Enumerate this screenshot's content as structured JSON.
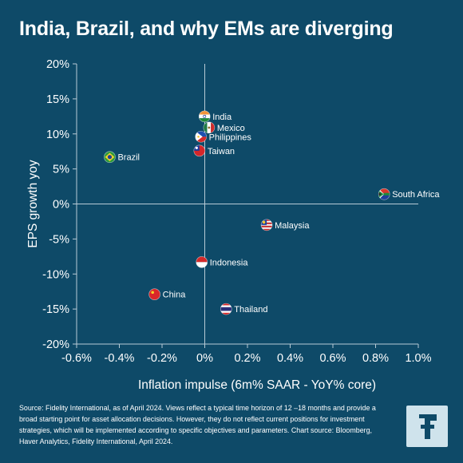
{
  "title": "India, Brazil, and why EMs are diverging",
  "footer": {
    "source": "Source: Fidelity International, as of April 2024. Views reflect a typical time horizon of 12 –18 months and provide a broad starting point for asset allocation decisions. However, they do not reflect current positions for investment strategies, which will be implemented according to specific objectives and parameters. Chart source: Bloomberg, Haver Analytics, Fidelity International, April 2024."
  },
  "logo": {
    "icon": "fidelity-f-logo"
  },
  "chart_data": {
    "type": "scatter",
    "title": "India, Brazil, and why EMs are diverging",
    "xlabel": "Inflation impulse (6m% SAAR - YoY% core)",
    "ylabel": "EPS growth yoy",
    "xlim": [
      -0.6,
      1.0
    ],
    "ylim": [
      -20,
      20
    ],
    "x_ticks": [
      -0.6,
      -0.4,
      -0.2,
      0,
      0.2,
      0.4,
      0.6,
      0.8,
      1.0
    ],
    "x_tick_labels": [
      "-0.6%",
      "-0.4%",
      "-0.2%",
      "0%",
      "0.2%",
      "0.4%",
      "0.6%",
      "0.8%",
      "1.0%"
    ],
    "y_ticks": [
      20,
      15,
      10,
      5,
      0,
      -5,
      -10,
      -15,
      -20
    ],
    "y_tick_labels": [
      "20%",
      "15%",
      "10%",
      "5%",
      "0%",
      "-5%",
      "-10%",
      "-15%",
      "-20%"
    ],
    "grid": false,
    "points": [
      {
        "label": "India",
        "x": -0.001,
        "y": 12.5,
        "icon": "flag-india"
      },
      {
        "label": "Mexico",
        "x": 0.02,
        "y": 10.9,
        "icon": "flag-mexico"
      },
      {
        "label": "Philippines",
        "x": -0.018,
        "y": 9.6,
        "icon": "flag-philippines"
      },
      {
        "label": "Taiwan",
        "x": -0.025,
        "y": 7.6,
        "icon": "flag-taiwan"
      },
      {
        "label": "Brazil",
        "x": -0.445,
        "y": 6.7,
        "icon": "flag-brazil"
      },
      {
        "label": "South Africa",
        "x": 0.84,
        "y": 1.4,
        "icon": "flag-south-africa"
      },
      {
        "label": "Malaysia",
        "x": 0.29,
        "y": -3.0,
        "icon": "flag-malaysia"
      },
      {
        "label": "Indonesia",
        "x": -0.014,
        "y": -8.3,
        "icon": "flag-indonesia"
      },
      {
        "label": "China",
        "x": -0.235,
        "y": -12.9,
        "icon": "flag-china"
      },
      {
        "label": "Thailand",
        "x": 0.1,
        "y": -15.0,
        "icon": "flag-thailand"
      }
    ]
  }
}
